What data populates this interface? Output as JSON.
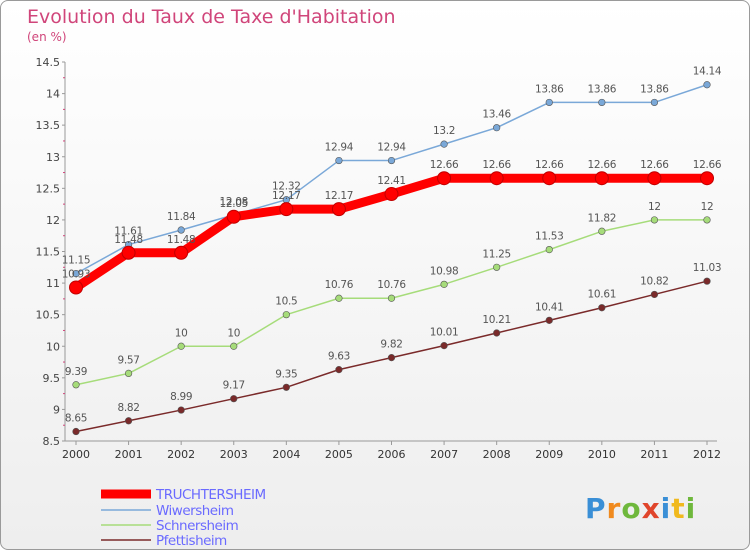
{
  "header": {
    "title": "Evolution du Taux de Taxe d'Habitation",
    "subtitle": "(en %)"
  },
  "logo": {
    "text": "Proxiti",
    "letters": [
      "P",
      "r",
      "o",
      "x",
      "i",
      "t",
      "i"
    ]
  },
  "chart_data": {
    "type": "line",
    "x": [
      2000,
      2001,
      2002,
      2003,
      2004,
      2005,
      2006,
      2007,
      2008,
      2009,
      2010,
      2011,
      2012
    ],
    "ylim": [
      8.5,
      14.5
    ],
    "yticks": [
      8.5,
      9,
      9.5,
      10,
      10.5,
      11,
      11.5,
      12,
      12.5,
      13,
      13.5,
      14,
      14.5
    ],
    "ytick_labels": [
      "8.5",
      "9",
      "9.5",
      "10",
      "10.5",
      "11",
      "11.5",
      "12",
      "12.5",
      "13",
      "13.5",
      "14",
      "14.5"
    ],
    "grid": false,
    "legend_position": "bottom-left",
    "series": [
      {
        "name": "TRUCHTERSHEIM",
        "color": "#ff0000",
        "values": [
          10.93,
          11.48,
          11.48,
          12.05,
          12.17,
          12.17,
          12.41,
          12.66,
          12.66,
          12.66,
          12.66,
          12.66,
          12.66
        ],
        "labels": [
          "10.93",
          "11.48",
          "11.48",
          "12.05",
          "12.17",
          "12.17",
          "12.41",
          "12.66",
          "12.66",
          "12.66",
          "12.66",
          "12.66",
          "12.66"
        ]
      },
      {
        "name": "Wiwersheim",
        "color": "#7aa8d8",
        "values": [
          11.15,
          11.61,
          11.84,
          12.08,
          12.32,
          12.94,
          12.94,
          13.2,
          13.46,
          13.86,
          13.86,
          13.86,
          14.14
        ],
        "labels": [
          "11.15",
          "11.61",
          "11.84",
          "12.08",
          "12.32",
          "12.94",
          "12.94",
          "13.2",
          "13.46",
          "13.86",
          "13.86",
          "13.86",
          "14.14"
        ]
      },
      {
        "name": "Schnersheim",
        "color": "#a6dc7a",
        "values": [
          9.39,
          9.57,
          10,
          10,
          10.5,
          10.76,
          10.76,
          10.98,
          11.25,
          11.53,
          11.82,
          12,
          12
        ],
        "labels": [
          "9.39",
          "9.57",
          "10",
          "10",
          "10.5",
          "10.76",
          "10.76",
          "10.98",
          "11.25",
          "11.53",
          "11.82",
          "12",
          "12"
        ]
      },
      {
        "name": "Pfettisheim",
        "color": "#7a2a2a",
        "values": [
          8.65,
          8.82,
          8.99,
          9.17,
          9.35,
          9.63,
          9.82,
          10.01,
          10.21,
          10.41,
          10.61,
          10.82,
          11.03
        ],
        "labels": [
          "8.65",
          "8.82",
          "8.99",
          "9.17",
          "9.35",
          "9.63",
          "9.82",
          "10.01",
          "10.21",
          "10.41",
          "10.61",
          "10.82",
          "11.03"
        ]
      }
    ]
  }
}
